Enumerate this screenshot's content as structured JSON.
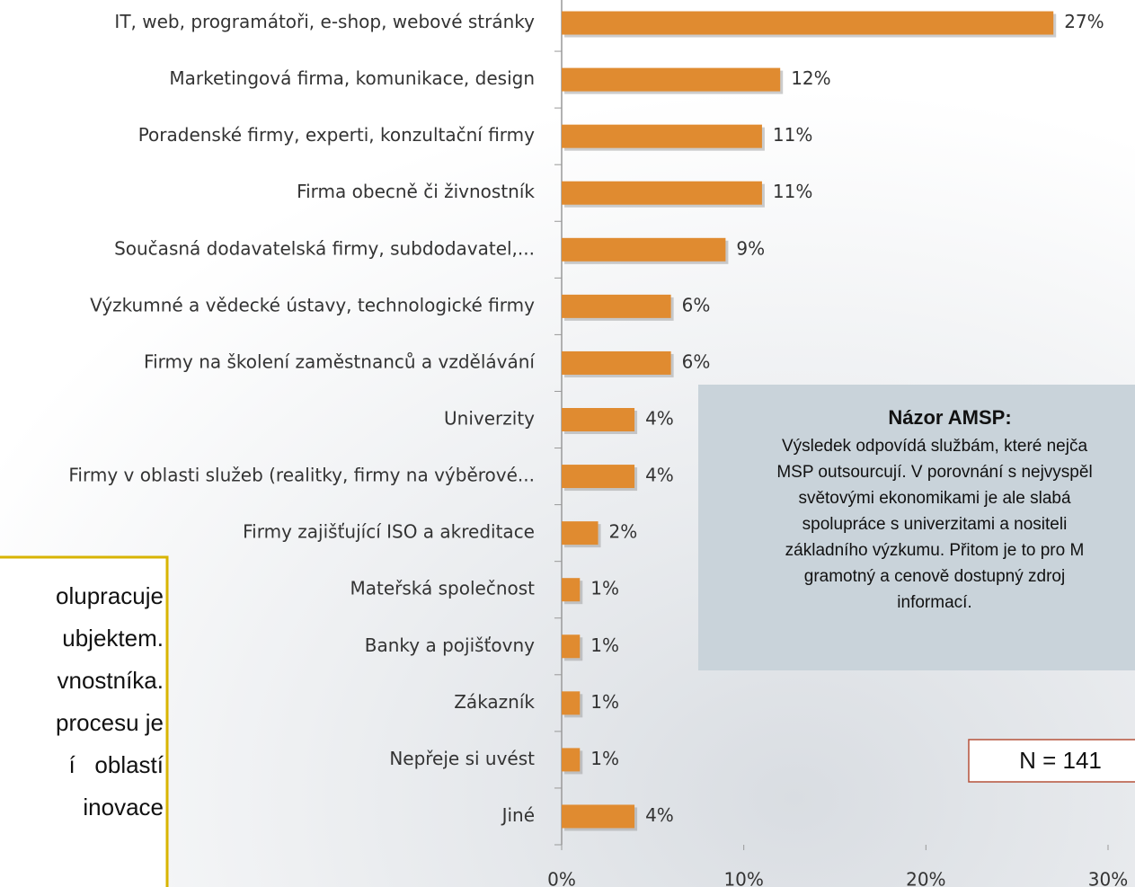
{
  "chart_data": {
    "type": "bar",
    "orientation": "horizontal",
    "categories": [
      "IT, web, programátoři, e-shop, webové stránky",
      "Marketingová firma, komunikace, design",
      "Poradenské firmy, experti, konzultační firmy",
      "Firma obecně či živnostník",
      "Současná dodavatelská firmy, subdodavatel,...",
      "Výzkumné a vědecké ústavy, technologické firmy",
      "Firmy na školení zaměstnanců a vzdělávání",
      "Univerzity",
      "Firmy v oblasti služeb (realitky, firmy na výběrové...",
      "Firmy zajišťující ISO a akreditace",
      "Mateřská společnost",
      "Banky a pojišťovny",
      "Zákazník",
      "Nepřeje si uvést",
      "Jiné"
    ],
    "values": [
      27,
      12,
      11,
      11,
      9,
      6,
      6,
      4,
      4,
      2,
      1,
      1,
      1,
      1,
      4
    ],
    "value_labels": [
      "27%",
      "12%",
      "11%",
      "11%",
      "9%",
      "6%",
      "6%",
      "4%",
      "4%",
      "2%",
      "1%",
      "1%",
      "1%",
      "1%",
      "4%"
    ],
    "color": "#e08b30",
    "xlim": [
      0,
      30
    ],
    "xticks": [
      {
        "value": 0,
        "label": "0%"
      },
      {
        "value": 10,
        "label": "10%"
      },
      {
        "value": 20,
        "label": "20%"
      },
      {
        "value": 30,
        "label": "30%"
      }
    ]
  },
  "opinion": {
    "title": "Názor AMSP:",
    "lines": [
      "Výsledek odpovídá službám, které nejča",
      "MSP outsourcují. V porovnání s nejvyspěl",
      "světovými ekonomikami je ale slabá",
      "spolupráce s univerzitami a nositeli",
      "základního výzkumu. Přitom je to pro M",
      "gramotný a cenově dostupný zdroj",
      "informací."
    ]
  },
  "sample": "N = 141",
  "side_note": [
    "olupracuje",
    "ubjektem.",
    "vnostníka.",
    "procesu je",
    "í   oblastí",
    "inovace"
  ]
}
